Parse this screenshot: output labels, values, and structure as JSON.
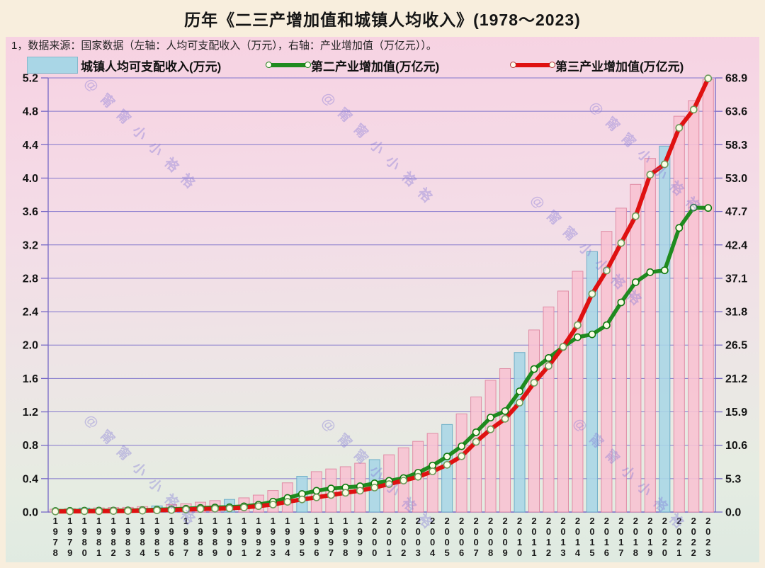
{
  "title": "历年《二三产增加值和城镇人均收入》(1978～2023)",
  "subtitle": "1，数据来源：国家数据（左轴：人均可支配收入（万元），右轴：产业增加值（万亿元））。",
  "watermark": {
    "text": "@甯甯小小袼袼",
    "color": "rgba(125,115,215,0.38)"
  },
  "legend": {
    "items": [
      {
        "label": "城镇人均可支配收入(万元)",
        "type": "bar",
        "color": "#a9d6e6"
      },
      {
        "label": "第二产业增加值(万亿元)",
        "type": "line",
        "color": "#1f8b1f"
      },
      {
        "label": "第三产业增加值(万亿元)",
        "type": "line",
        "color": "#df1111"
      }
    ]
  },
  "colors": {
    "page_bg": "#f8eedd",
    "panel_top": "#f7d2e2",
    "panel_bottom": "#deeae1",
    "grid": "#8276cc",
    "axis": "#7668c6",
    "bar_pink": "#f8c1d2",
    "bar_pink_border": "#e08ca5",
    "bar_blue": "#a9d6e6",
    "bar_blue_border": "#6eafc8",
    "line_secondary": "#1f8b1f",
    "line_tertiary": "#df1111",
    "marker_fill": "#fcfce6",
    "marker_ring_secondary": "#0f7a0f",
    "marker_ring_tertiary": "#6d9b5c"
  },
  "chart_data": {
    "type": "combo",
    "title": "历年《二三产增加值和城镇人均收入》(1978～2023)",
    "grid": true,
    "legend_position": "top",
    "categories": [
      1978,
      1979,
      1980,
      1981,
      1982,
      1983,
      1984,
      1985,
      1986,
      1987,
      1988,
      1989,
      1990,
      1991,
      1992,
      1993,
      1994,
      1995,
      1996,
      1997,
      1998,
      1999,
      2000,
      2001,
      2002,
      2003,
      2004,
      2005,
      2006,
      2007,
      2008,
      2009,
      2010,
      2011,
      2012,
      2013,
      2014,
      2015,
      2016,
      2017,
      2018,
      2019,
      2020,
      2021,
      2022,
      2023
    ],
    "series": [
      {
        "name": "城镇人均可支配收入(万元)",
        "chart": "bar",
        "axis": "left",
        "highlight_years": [
          1980,
          1985,
          1990,
          1995,
          2000,
          2005,
          2010,
          2015,
          2020
        ],
        "values": [
          0.034,
          0.041,
          0.048,
          0.05,
          0.054,
          0.056,
          0.065,
          0.074,
          0.09,
          0.1,
          0.118,
          0.137,
          0.151,
          0.17,
          0.203,
          0.258,
          0.35,
          0.428,
          0.484,
          0.516,
          0.543,
          0.585,
          0.628,
          0.686,
          0.77,
          0.847,
          0.942,
          1.049,
          1.176,
          1.379,
          1.578,
          1.718,
          1.911,
          2.181,
          2.457,
          2.647,
          2.884,
          3.12,
          3.362,
          3.64,
          3.925,
          4.236,
          4.383,
          4.741,
          4.928,
          5.182
        ]
      },
      {
        "name": "第二产业增加值(万亿元)",
        "chart": "line",
        "axis": "right",
        "values": [
          0.17,
          0.19,
          0.22,
          0.23,
          0.24,
          0.26,
          0.31,
          0.39,
          0.45,
          0.53,
          0.66,
          0.73,
          0.77,
          0.91,
          1.17,
          1.65,
          2.24,
          2.87,
          3.38,
          3.75,
          3.9,
          4.1,
          4.56,
          4.95,
          5.39,
          6.24,
          7.39,
          8.81,
          10.44,
          12.66,
          15.0,
          16.02,
          19.16,
          22.7,
          24.46,
          26.2,
          27.76,
          28.2,
          29.65,
          33.27,
          36.48,
          38.07,
          38.36,
          45.09,
          48.32,
          48.26
        ]
      },
      {
        "name": "第三产业增加值(万亿元)",
        "chart": "line",
        "axis": "right",
        "values": [
          0.09,
          0.11,
          0.13,
          0.14,
          0.16,
          0.18,
          0.22,
          0.28,
          0.33,
          0.4,
          0.49,
          0.54,
          0.59,
          0.73,
          0.94,
          1.19,
          1.62,
          2.0,
          2.33,
          2.7,
          3.06,
          3.39,
          3.89,
          4.44,
          4.99,
          5.6,
          6.46,
          7.49,
          8.86,
          11.14,
          13.13,
          14.8,
          17.36,
          20.52,
          23.19,
          26.22,
          29.67,
          34.62,
          38.34,
          42.7,
          46.96,
          53.54,
          55.2,
          60.97,
          63.87,
          68.82
        ]
      }
    ],
    "left_axis": {
      "min": 0,
      "max": 5.2,
      "step": 0.4,
      "tick_labels": [
        "0.0",
        "0.4",
        "0.8",
        "1.2",
        "1.6",
        "2.0",
        "2.4",
        "2.8",
        "3.2",
        "3.6",
        "4.0",
        "4.4",
        "4.8",
        "5.2"
      ]
    },
    "right_axis": {
      "min": 0,
      "max": 68.9,
      "step": 5.3,
      "tick_labels": [
        "0.0",
        "5.3",
        "10.6",
        "15.9",
        "21.2",
        "26.5",
        "31.8",
        "37.1",
        "42.4",
        "47.7",
        "53.0",
        "58.3",
        "63.6",
        "68.9"
      ]
    }
  }
}
